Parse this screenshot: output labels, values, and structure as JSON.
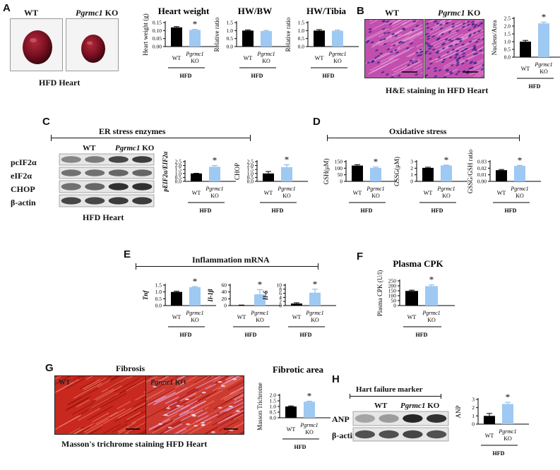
{
  "panels": {
    "A": {
      "label": "A",
      "wt": "WT",
      "ko_gene": "Pgrmc1",
      "ko_suffix": " KO",
      "caption": "HFD Heart"
    },
    "B": {
      "label": "B",
      "wt": "WT",
      "ko_gene": "Pgrmc1",
      "ko_suffix": " KO",
      "caption": "H&E staining in HFD Heart"
    },
    "C": {
      "label": "C",
      "header": "ER stress enzymes",
      "wt": "WT",
      "ko_gene": "Pgrmc1",
      "ko_suffix": " KO",
      "blot_rows": [
        "pcIF2α",
        "eIF2α",
        "CHOP",
        "β-actin"
      ],
      "caption": "HFD Heart"
    },
    "D": {
      "label": "D",
      "header": "Oxidative stress"
    },
    "E": {
      "label": "E",
      "header": "Inflammation mRNA"
    },
    "F": {
      "label": "F"
    },
    "G": {
      "label": "G",
      "top_caption": "Fibrosis",
      "wt": "WT",
      "ko_gene": "Pgrmc1",
      "ko_suffix": " KO",
      "caption": "Masson's trichrome staining HFD Heart"
    },
    "H": {
      "label": "H",
      "header": "Hart failure marker",
      "wt": "WT",
      "ko_gene": "Pgrmc1",
      "ko_suffix": " KO",
      "blot_rows": [
        "ANP",
        "β-actin"
      ]
    }
  },
  "group_labels": {
    "wt": "WT",
    "ko_gene": "Pgrmc1",
    "ko": "KO",
    "diet": "HFD",
    "significance": "*"
  },
  "colors": {
    "wt": "#000000",
    "ko": "#9ec9f2"
  },
  "chart_data": [
    {
      "type": "bar",
      "title": "Heart weight",
      "ylabel": "Heart weight (g)",
      "ylabel_italic": false,
      "ylim": [
        0,
        0.15
      ],
      "ticks": [
        "0.00",
        "0.05",
        "0.10",
        "0.15"
      ],
      "categories": [
        "WT",
        "Pgrmc1 KO"
      ],
      "values": [
        0.12,
        0.104
      ],
      "errors": [
        0.005,
        0.003
      ],
      "significant": [
        false,
        true
      ]
    },
    {
      "type": "bar",
      "title": "HW/BW",
      "ylabel": "Relative ratio",
      "ylabel_italic": false,
      "ylim": [
        0,
        1.5
      ],
      "ticks": [
        "0.0",
        "0.5",
        "1.0",
        "1.5"
      ],
      "categories": [
        "WT",
        "Pgrmc1 KO"
      ],
      "values": [
        1.0,
        0.97
      ],
      "errors": [
        0.04,
        0.04
      ],
      "significant": [
        false,
        false
      ]
    },
    {
      "type": "bar",
      "title": "HW/Tibia",
      "ylabel": "Relative ratio",
      "ylabel_italic": false,
      "ylim": [
        0,
        1.5
      ],
      "ticks": [
        "0.0",
        "0.5",
        "1.0",
        "1.5"
      ],
      "categories": [
        "WT",
        "Pgrmc1 KO"
      ],
      "values": [
        1.0,
        0.99
      ],
      "errors": [
        0.06,
        0.04
      ],
      "significant": [
        false,
        false
      ]
    },
    {
      "type": "bar",
      "title": "",
      "ylabel": "Nucleus/Area",
      "ylabel_italic": false,
      "ylim": [
        0,
        2.5
      ],
      "ticks": [
        "0.0",
        "0.5",
        "1.0",
        "1.5",
        "2.0",
        "2.5"
      ],
      "categories": [
        "WT",
        "Pgrmc1 KO"
      ],
      "values": [
        1.0,
        2.18
      ],
      "errors": [
        0.08,
        0.08
      ],
      "significant": [
        false,
        true
      ]
    },
    {
      "type": "bar",
      "title": "",
      "ylabel": "pEIF2α/EIF2α",
      "ylabel_italic": true,
      "ylim": [
        0,
        2.5
      ],
      "ticks": [
        "0.0",
        "0.5",
        "1.0",
        "1.5",
        "2.0",
        "2.5"
      ],
      "categories": [
        "WT",
        "Pgrmc1 KO"
      ],
      "values": [
        1.0,
        1.85
      ],
      "errors": [
        0.02,
        0.15
      ],
      "significant": [
        false,
        true
      ]
    },
    {
      "type": "bar",
      "title": "",
      "ylabel": "CHOP",
      "ylabel_italic": false,
      "ylim": [
        0,
        2.5
      ],
      "ticks": [
        "0.0",
        "0.5",
        "1.0",
        "1.5",
        "2.0",
        "2.5"
      ],
      "categories": [
        "WT",
        "Pgrmc1 KO"
      ],
      "values": [
        1.0,
        1.8
      ],
      "errors": [
        0.25,
        0.3
      ],
      "significant": [
        false,
        true
      ]
    },
    {
      "type": "bar",
      "title": "",
      "ylabel": "GSH(μM)",
      "ylabel_italic": false,
      "ylim": [
        0,
        150
      ],
      "ticks": [
        "0",
        "50",
        "100",
        "150"
      ],
      "categories": [
        "WT",
        "Pgrmc1 KO"
      ],
      "values": [
        120,
        103
      ],
      "errors": [
        7,
        6
      ],
      "significant": [
        false,
        true
      ]
    },
    {
      "type": "bar",
      "title": "",
      "ylabel": "GSSG(μM)",
      "ylabel_italic": false,
      "ylim": [
        0,
        3
      ],
      "ticks": [
        "0",
        "1",
        "2",
        "3"
      ],
      "categories": [
        "WT",
        "Pgrmc1 KO"
      ],
      "values": [
        2.05,
        2.42
      ],
      "errors": [
        0.1,
        0.05
      ],
      "significant": [
        false,
        true
      ]
    },
    {
      "type": "bar",
      "title": "",
      "ylabel": "GSSG/GSH ratio",
      "ylabel_italic": false,
      "ylim": [
        0,
        0.03
      ],
      "ticks": [
        "0.00",
        "0.01",
        "0.02",
        "0.03"
      ],
      "categories": [
        "WT",
        "Pgrmc1 KO"
      ],
      "values": [
        0.017,
        0.0235
      ],
      "errors": [
        0.001,
        0.0008
      ],
      "significant": [
        false,
        true
      ]
    },
    {
      "type": "bar",
      "title": "",
      "ylabel": "Tnf",
      "ylabel_italic": true,
      "ylim": [
        0,
        1.5
      ],
      "ticks": [
        "0.0",
        "0.5",
        "1.0",
        "1.5"
      ],
      "categories": [
        "WT",
        "Pgrmc1 KO"
      ],
      "values": [
        1.0,
        1.35
      ],
      "errors": [
        0.05,
        0.04
      ],
      "significant": [
        false,
        true
      ]
    },
    {
      "type": "bar",
      "title": "",
      "ylabel": "Il-1β",
      "ylabel_italic": true,
      "ylim": [
        0,
        60
      ],
      "ticks": [
        "0",
        "20",
        "40",
        "60"
      ],
      "categories": [
        "WT",
        "Pgrmc1 KO"
      ],
      "values": [
        1,
        33
      ],
      "errors": [
        0.5,
        14
      ],
      "significant": [
        false,
        true
      ]
    },
    {
      "type": "bar",
      "title": "",
      "ylabel": "Il-6",
      "ylabel_italic": true,
      "ylim": [
        0,
        10
      ],
      "ticks": [
        "0",
        "2",
        "4",
        "6",
        "8",
        "10"
      ],
      "categories": [
        "WT",
        "Pgrmc1 KO"
      ],
      "values": [
        1.0,
        6.3
      ],
      "errors": [
        0.4,
        1.7
      ],
      "significant": [
        false,
        true
      ]
    },
    {
      "type": "bar",
      "title": "Plasma CPK",
      "ylabel": "Plasma CPK (U/l)",
      "ylabel_italic": false,
      "ylim": [
        0,
        250
      ],
      "ticks": [
        "0",
        "50",
        "100",
        "150",
        "200",
        "250"
      ],
      "categories": [
        "WT",
        "Pgrmc1 KO"
      ],
      "values": [
        148,
        197
      ],
      "errors": [
        8,
        12
      ],
      "significant": [
        false,
        true
      ]
    },
    {
      "type": "bar",
      "title": "Fibrotic area",
      "ylabel": "Masson Trichrome",
      "ylabel_italic": false,
      "ylim": [
        0,
        2
      ],
      "ticks": [
        "0.0",
        "0.5",
        "1.0",
        "1.5",
        "2.0"
      ],
      "categories": [
        "WT",
        "Pgrmc1 KO"
      ],
      "values": [
        1.0,
        1.42
      ],
      "errors": [
        0.05,
        0.05
      ],
      "significant": [
        false,
        true
      ]
    },
    {
      "type": "bar",
      "title": "",
      "ylabel": "ANP",
      "ylabel_italic": false,
      "ylim": [
        0,
        3
      ],
      "ticks": [
        "0",
        "1",
        "2",
        "3"
      ],
      "categories": [
        "WT",
        "Pgrmc1 KO"
      ],
      "values": [
        1.0,
        2.45
      ],
      "errors": [
        0.3,
        0.2
      ],
      "significant": [
        false,
        true
      ]
    }
  ]
}
